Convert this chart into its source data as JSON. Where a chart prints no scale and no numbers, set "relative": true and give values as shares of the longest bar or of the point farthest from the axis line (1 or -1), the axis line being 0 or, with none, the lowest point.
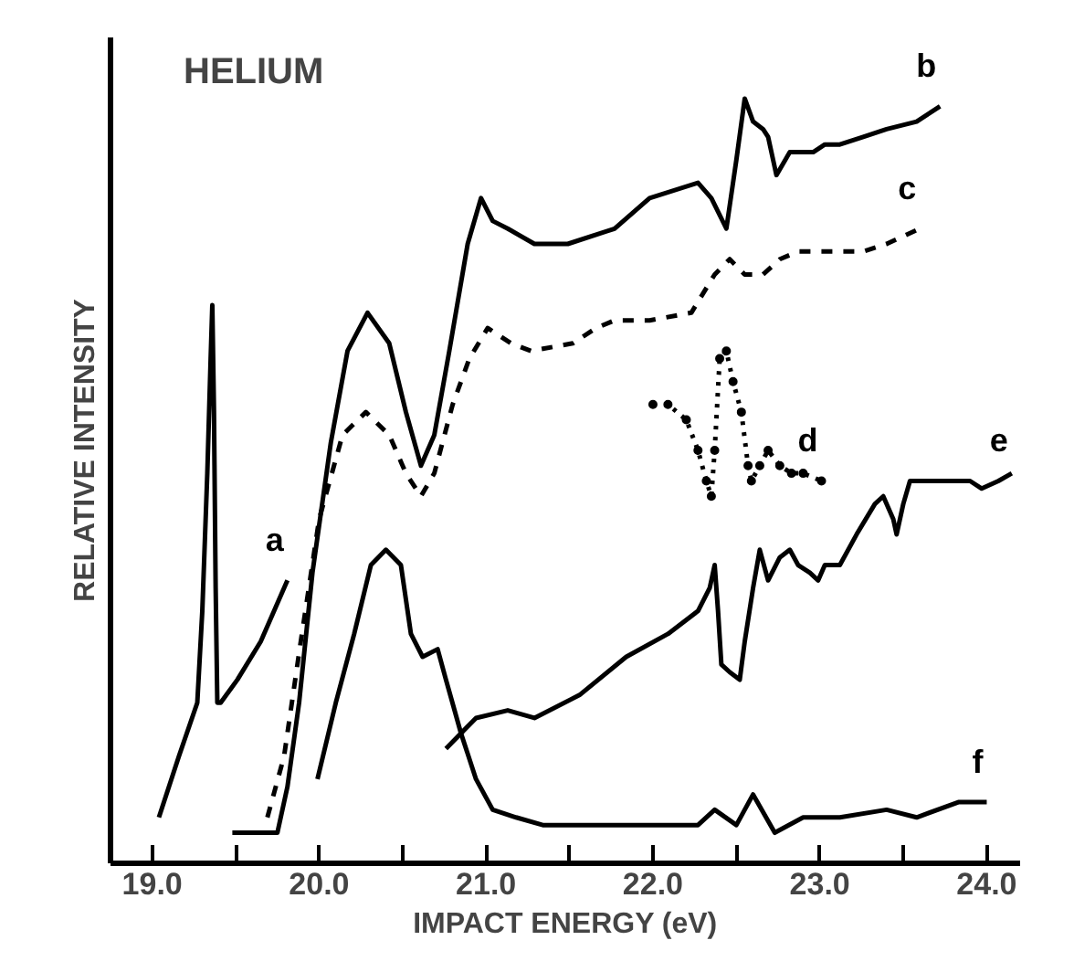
{
  "chart_data": {
    "type": "line",
    "title": "HELIUM",
    "xlabel": "IMPACT ENERGY (eV)",
    "ylabel": "RELATIVE INTENSITY",
    "relative": true,
    "xlim": [
      18.75,
      24.2
    ],
    "xticks": [
      {
        "value": 19,
        "label": "19.0"
      },
      {
        "value": 19.5,
        "label": null
      },
      {
        "value": 20,
        "label": "20.0"
      },
      {
        "value": 20.5,
        "label": null
      },
      {
        "value": 21,
        "label": "21.0"
      },
      {
        "value": 21.5,
        "label": null
      },
      {
        "value": 22,
        "label": "22.0"
      },
      {
        "value": 22.5,
        "label": null
      },
      {
        "value": 23,
        "label": "23.0"
      },
      {
        "value": 23.5,
        "label": null
      },
      {
        "value": 24,
        "label": "24.0"
      }
    ],
    "grid": false,
    "legend": false,
    "line_style": "solid",
    "marker": "none",
    "series": [
      {
        "name": "a",
        "color": "#000000",
        "x": [
          19.04,
          19.16,
          19.27,
          19.3,
          19.33,
          19.35,
          19.36,
          19.37,
          19.38,
          19.39,
          19.41,
          19.51,
          19.65,
          19.81
        ],
        "values": [
          0.06,
          0.14,
          0.21,
          0.33,
          0.51,
          0.66,
          0.73,
          0.59,
          0.36,
          0.21,
          0.21,
          0.24,
          0.29,
          0.37
        ]
      },
      {
        "name": "b",
        "color": "#000000",
        "x": [
          19.48,
          19.75,
          19.81,
          19.88,
          19.96,
          20.07,
          20.17,
          20.29,
          20.42,
          20.52,
          20.61,
          20.69,
          20.78,
          20.89,
          20.97,
          21.04,
          21.13,
          21.29,
          21.49,
          21.77,
          21.98,
          22.27,
          22.35,
          22.44,
          22.5,
          22.55,
          22.6,
          22.66,
          22.69,
          22.74,
          22.82,
          22.9,
          22.96,
          23.03,
          23.12,
          23.26,
          23.4,
          23.58,
          23.72
        ],
        "values": [
          0.04,
          0.04,
          0.1,
          0.21,
          0.38,
          0.55,
          0.67,
          0.72,
          0.68,
          0.59,
          0.52,
          0.56,
          0.67,
          0.81,
          0.87,
          0.84,
          0.83,
          0.81,
          0.81,
          0.83,
          0.87,
          0.89,
          0.87,
          0.83,
          0.92,
          1.0,
          0.97,
          0.96,
          0.95,
          0.9,
          0.93,
          0.93,
          0.93,
          0.94,
          0.94,
          0.95,
          0.96,
          0.97,
          0.99
        ]
      },
      {
        "name": "c",
        "color": "#000000",
        "line_style": "dashed",
        "x": [
          19.69,
          19.79,
          19.89,
          20.0,
          20.14,
          20.28,
          20.42,
          20.52,
          20.61,
          20.69,
          20.8,
          20.9,
          21.01,
          21.15,
          21.27,
          21.52,
          21.66,
          21.77,
          21.98,
          22.23,
          22.37,
          22.46,
          22.55,
          22.66,
          22.76,
          22.87,
          23.05,
          23.26,
          23.4,
          23.6
        ],
        "values": [
          0.06,
          0.14,
          0.29,
          0.45,
          0.56,
          0.59,
          0.56,
          0.51,
          0.48,
          0.51,
          0.6,
          0.66,
          0.7,
          0.68,
          0.67,
          0.68,
          0.7,
          0.71,
          0.71,
          0.72,
          0.77,
          0.79,
          0.77,
          0.77,
          0.79,
          0.8,
          0.8,
          0.8,
          0.81,
          0.83
        ]
      },
      {
        "name": "d",
        "color": "#000000",
        "line_style": "dotted",
        "marker": "circle",
        "x": [
          22.0,
          22.09,
          22.2,
          22.27,
          22.32,
          22.35,
          22.37,
          22.4,
          22.44,
          22.48,
          22.53,
          22.57,
          22.59,
          22.64,
          22.69,
          22.76,
          22.83,
          22.9,
          23.01
        ],
        "values": [
          0.6,
          0.6,
          0.58,
          0.54,
          0.5,
          0.48,
          0.54,
          0.66,
          0.67,
          0.63,
          0.59,
          0.52,
          0.5,
          0.52,
          0.54,
          0.52,
          0.51,
          0.51,
          0.5
        ]
      },
      {
        "name": "e",
        "color": "#000000",
        "x": [
          20.76,
          20.94,
          21.13,
          21.29,
          21.56,
          21.84,
          22.09,
          22.27,
          22.34,
          22.37,
          22.39,
          22.41,
          22.46,
          22.52,
          22.55,
          22.6,
          22.64,
          22.69,
          22.76,
          22.82,
          22.87,
          22.94,
          22.99,
          23.03,
          23.12,
          23.22,
          23.33,
          23.38,
          23.44,
          23.46,
          23.5,
          23.54,
          23.61,
          23.72,
          23.83,
          23.9,
          23.97,
          24.07,
          24.15
        ],
        "values": [
          0.15,
          0.19,
          0.2,
          0.19,
          0.22,
          0.27,
          0.3,
          0.33,
          0.36,
          0.39,
          0.33,
          0.26,
          0.25,
          0.24,
          0.29,
          0.36,
          0.41,
          0.37,
          0.4,
          0.41,
          0.39,
          0.38,
          0.37,
          0.39,
          0.39,
          0.43,
          0.47,
          0.48,
          0.45,
          0.43,
          0.47,
          0.5,
          0.5,
          0.5,
          0.5,
          0.5,
          0.49,
          0.5,
          0.51
        ]
      },
      {
        "name": "f",
        "color": "#000000",
        "x": [
          19.99,
          20.1,
          20.21,
          20.31,
          20.4,
          20.49,
          20.55,
          20.62,
          20.71,
          20.76,
          20.85,
          20.94,
          21.04,
          21.18,
          21.34,
          21.66,
          22.27,
          22.37,
          22.5,
          22.6,
          22.73,
          22.9,
          23.12,
          23.4,
          23.58,
          23.83,
          24.0
        ],
        "values": [
          0.11,
          0.21,
          0.3,
          0.39,
          0.41,
          0.39,
          0.3,
          0.27,
          0.28,
          0.24,
          0.17,
          0.11,
          0.07,
          0.06,
          0.05,
          0.05,
          0.05,
          0.07,
          0.05,
          0.09,
          0.04,
          0.06,
          0.06,
          0.07,
          0.06,
          0.08,
          0.08
        ]
      }
    ]
  }
}
